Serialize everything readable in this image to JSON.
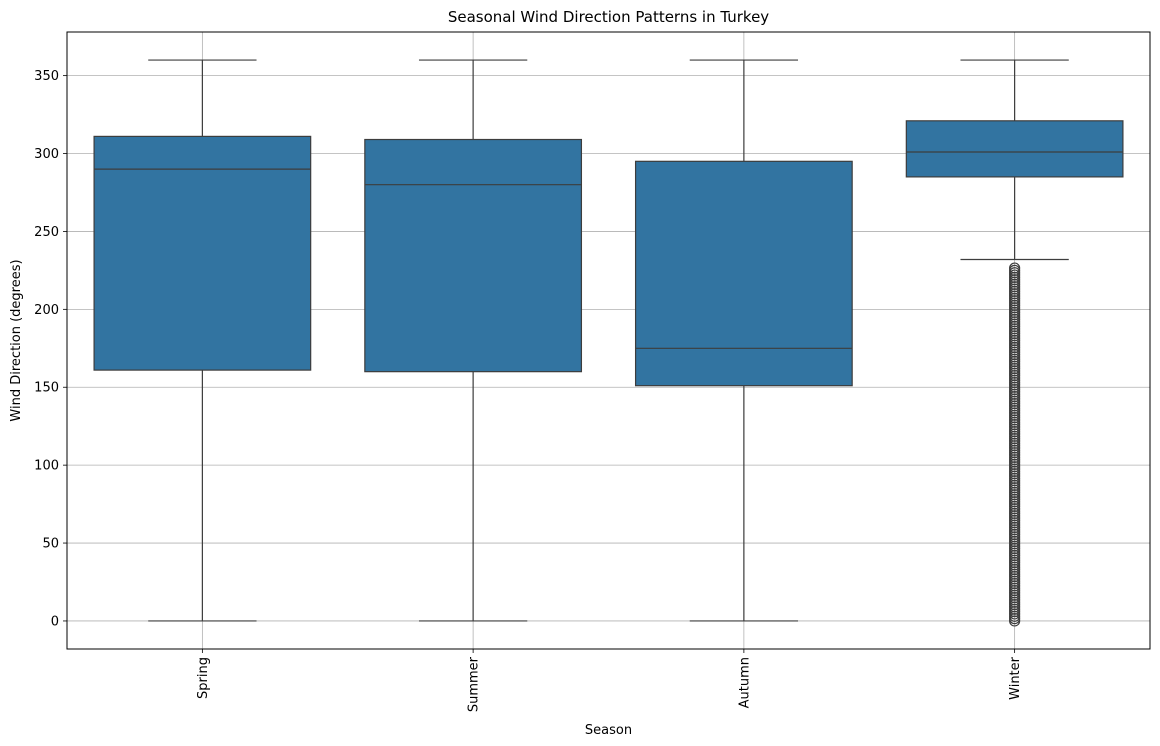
{
  "chart_data": {
    "type": "box",
    "title": "Seasonal Wind Direction Patterns in Turkey",
    "xlabel": "Season",
    "ylabel": "Wind Direction (degrees)",
    "ylim": [
      -18,
      378
    ],
    "yticks": [
      0,
      50,
      100,
      150,
      200,
      250,
      300,
      350
    ],
    "grid": true,
    "box_color": "#3274a1",
    "line_color": "#3d3d3d",
    "grid_color": "#b0b0b0",
    "categories": [
      "Spring",
      "Summer",
      "Autumn",
      "Winter"
    ],
    "boxes": [
      {
        "category": "Spring",
        "whisker_low": 0,
        "q1": 161,
        "median": 290,
        "q3": 311,
        "whisker_high": 360,
        "outliers_range": null
      },
      {
        "category": "Summer",
        "whisker_low": 0,
        "q1": 160,
        "median": 280,
        "q3": 309,
        "whisker_high": 360,
        "outliers_range": null
      },
      {
        "category": "Autumn",
        "whisker_low": 0,
        "q1": 151,
        "median": 175,
        "q3": 295,
        "whisker_high": 360,
        "outliers_range": null
      },
      {
        "category": "Winter",
        "whisker_low": 232,
        "q1": 285,
        "median": 301,
        "q3": 321,
        "whisker_high": 360,
        "outliers_range": [
          0,
          227
        ]
      }
    ]
  }
}
